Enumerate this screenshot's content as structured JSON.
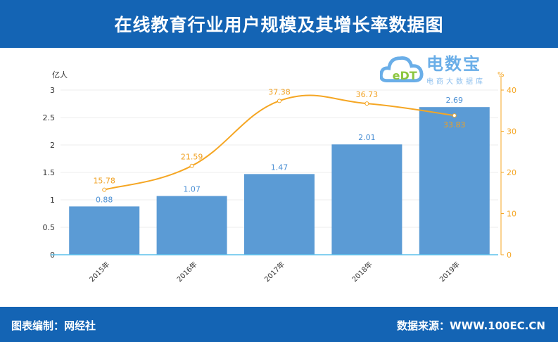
{
  "header": {
    "title": "在线教育行业用户规模及其增长率数据图"
  },
  "footer": {
    "left": "图表编制：网经社",
    "right": "数据来源：WWW.100EC.CN"
  },
  "logo": {
    "mark": "eDT",
    "name": "电数宝",
    "tagline": "电商大数据库"
  },
  "colors": {
    "bar": "#5b9bd5",
    "line": "#f5a623",
    "bar_label": "#4a8fd4",
    "line_label": "#f0a020",
    "header": "#1464b4"
  },
  "chart_data": {
    "type": "bar+line",
    "categories": [
      "2015年",
      "2016年",
      "2017年",
      "2018年",
      "2019年"
    ],
    "series": [
      {
        "type": "bar",
        "axis": "left",
        "values": [
          0.88,
          1.07,
          1.47,
          2.01,
          2.69
        ]
      },
      {
        "type": "line",
        "axis": "right",
        "values": [
          15.78,
          21.59,
          37.38,
          36.73,
          33.83
        ]
      }
    ],
    "left_axis": {
      "label": "亿人",
      "ylim": [
        0,
        3
      ],
      "ticks": [
        "0",
        "0.5",
        "1",
        "1.5",
        "2",
        "2.5",
        "3"
      ]
    },
    "right_axis": {
      "label": "%",
      "ylim": [
        0,
        40
      ],
      "ticks": [
        "0",
        "10",
        "20",
        "30",
        "40"
      ]
    },
    "grid": true
  }
}
